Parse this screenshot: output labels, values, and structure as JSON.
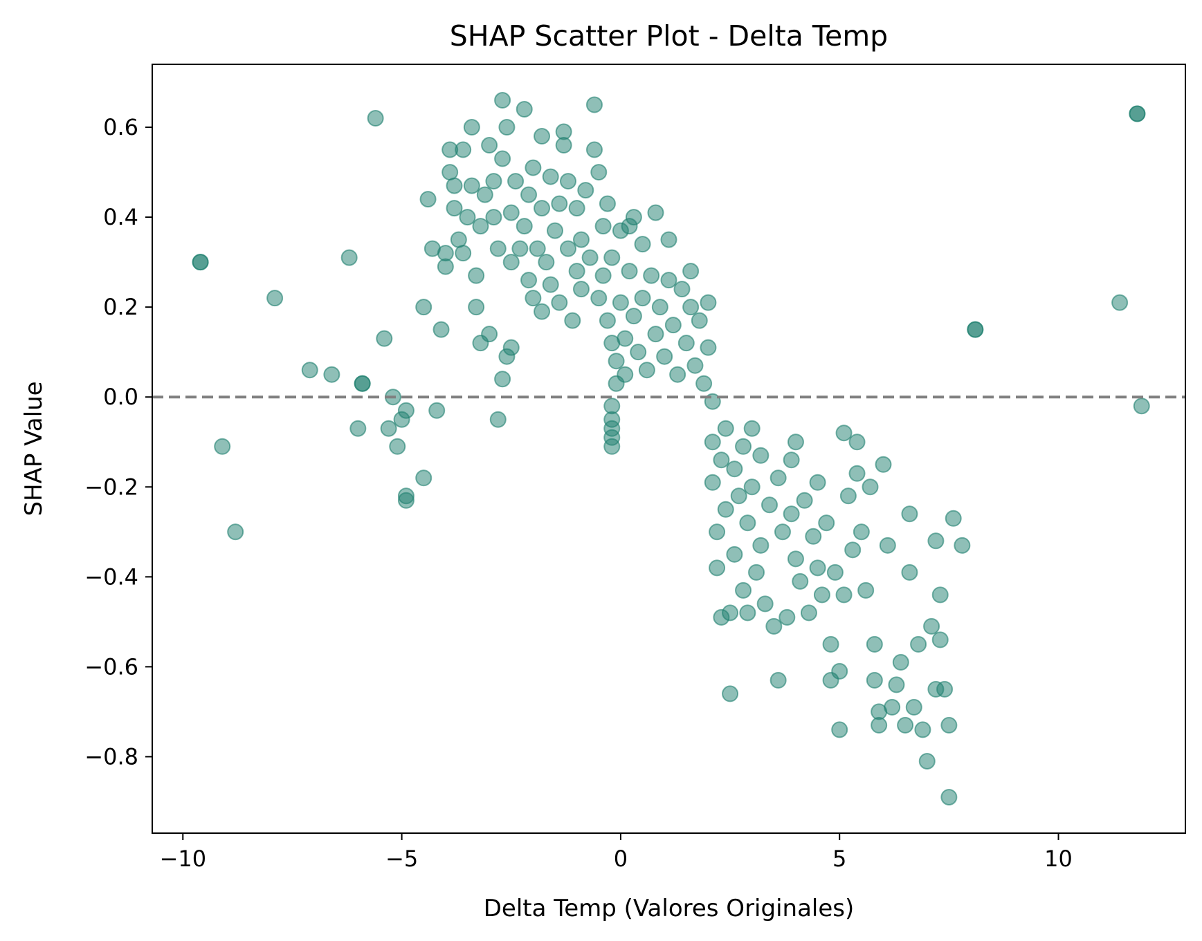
{
  "chart_data": {
    "type": "scatter",
    "title": "SHAP Scatter Plot - Delta Temp",
    "xlabel": "Delta Temp (Valores Originales)",
    "ylabel": "SHAP Value",
    "xlim": [
      -10.7,
      12.9
    ],
    "ylim": [
      -0.97,
      0.74
    ],
    "xticks": [
      -10,
      -5,
      0,
      5,
      10
    ],
    "xtick_labels": [
      "−10",
      "−5",
      "0",
      "5",
      "10"
    ],
    "yticks": [
      0.6,
      0.4,
      0.2,
      0.0,
      -0.2,
      -0.4,
      -0.6,
      -0.8
    ],
    "ytick_labels": [
      "0.6",
      "0.4",
      "0.2",
      "0.0",
      "−0.2",
      "−0.4",
      "−0.6",
      "−0.8"
    ],
    "reference_line": {
      "y": 0.0,
      "style": "dashed",
      "color": "#808080"
    },
    "grid": false,
    "marker_color": "#1f8070",
    "marker_alpha": 0.5,
    "points": [
      [
        -9.6,
        0.3
      ],
      [
        -9.6,
        0.3
      ],
      [
        -9.1,
        -0.11
      ],
      [
        -8.8,
        -0.3
      ],
      [
        -7.9,
        0.22
      ],
      [
        -7.1,
        0.06
      ],
      [
        -6.6,
        0.05
      ],
      [
        -6.2,
        0.31
      ],
      [
        -6.0,
        -0.07
      ],
      [
        -5.9,
        0.03
      ],
      [
        -5.9,
        0.03
      ],
      [
        -5.6,
        0.62
      ],
      [
        -5.4,
        0.13
      ],
      [
        -5.3,
        -0.07
      ],
      [
        -5.2,
        0.0
      ],
      [
        -5.1,
        -0.11
      ],
      [
        -5.0,
        -0.05
      ],
      [
        -4.9,
        -0.03
      ],
      [
        -4.9,
        -0.22
      ],
      [
        -4.9,
        -0.23
      ],
      [
        -4.5,
        -0.18
      ],
      [
        -4.5,
        0.2
      ],
      [
        -4.4,
        0.44
      ],
      [
        -4.3,
        0.33
      ],
      [
        -4.2,
        -0.03
      ],
      [
        -4.1,
        0.15
      ],
      [
        -4.0,
        0.29
      ],
      [
        -4.0,
        0.32
      ],
      [
        -3.9,
        0.55
      ],
      [
        -3.9,
        0.5
      ],
      [
        -3.8,
        0.42
      ],
      [
        -3.8,
        0.47
      ],
      [
        -3.7,
        0.35
      ],
      [
        -3.6,
        0.55
      ],
      [
        -3.6,
        0.32
      ],
      [
        -3.5,
        0.4
      ],
      [
        -3.4,
        0.47
      ],
      [
        -3.4,
        0.6
      ],
      [
        -3.3,
        0.27
      ],
      [
        -3.3,
        0.2
      ],
      [
        -3.2,
        0.12
      ],
      [
        -3.2,
        0.38
      ],
      [
        -3.1,
        0.45
      ],
      [
        -3.0,
        0.56
      ],
      [
        -3.0,
        0.14
      ],
      [
        -2.9,
        0.4
      ],
      [
        -2.9,
        0.48
      ],
      [
        -2.8,
        -0.05
      ],
      [
        -2.8,
        0.33
      ],
      [
        -2.7,
        0.04
      ],
      [
        -2.7,
        0.66
      ],
      [
        -2.7,
        0.53
      ],
      [
        -2.6,
        0.6
      ],
      [
        -2.6,
        0.09
      ],
      [
        -2.5,
        0.11
      ],
      [
        -2.5,
        0.3
      ],
      [
        -2.5,
        0.41
      ],
      [
        -2.4,
        0.48
      ],
      [
        -2.3,
        0.33
      ],
      [
        -2.2,
        0.38
      ],
      [
        -2.2,
        0.64
      ],
      [
        -2.1,
        0.26
      ],
      [
        -2.1,
        0.45
      ],
      [
        -2.0,
        0.51
      ],
      [
        -2.0,
        0.22
      ],
      [
        -1.9,
        0.33
      ],
      [
        -1.8,
        0.19
      ],
      [
        -1.8,
        0.42
      ],
      [
        -1.8,
        0.58
      ],
      [
        -1.7,
        0.3
      ],
      [
        -1.6,
        0.25
      ],
      [
        -1.6,
        0.49
      ],
      [
        -1.5,
        0.37
      ],
      [
        -1.4,
        0.43
      ],
      [
        -1.4,
        0.21
      ],
      [
        -1.3,
        0.56
      ],
      [
        -1.3,
        0.59
      ],
      [
        -1.2,
        0.33
      ],
      [
        -1.2,
        0.48
      ],
      [
        -1.1,
        0.17
      ],
      [
        -1.0,
        0.28
      ],
      [
        -1.0,
        0.42
      ],
      [
        -0.9,
        0.35
      ],
      [
        -0.9,
        0.24
      ],
      [
        -0.8,
        0.46
      ],
      [
        -0.7,
        0.31
      ],
      [
        -0.6,
        0.55
      ],
      [
        -0.6,
        0.65
      ],
      [
        -0.5,
        0.5
      ],
      [
        -0.5,
        0.22
      ],
      [
        -0.4,
        0.38
      ],
      [
        -0.4,
        0.27
      ],
      [
        -0.3,
        0.43
      ],
      [
        -0.3,
        0.17
      ],
      [
        -0.2,
        0.12
      ],
      [
        -0.2,
        0.31
      ],
      [
        -0.2,
        -0.02
      ],
      [
        -0.2,
        -0.05
      ],
      [
        -0.2,
        -0.07
      ],
      [
        -0.2,
        -0.09
      ],
      [
        -0.2,
        -0.11
      ],
      [
        -0.1,
        0.08
      ],
      [
        -0.1,
        0.03
      ],
      [
        0.0,
        0.37
      ],
      [
        0.0,
        0.21
      ],
      [
        0.1,
        0.05
      ],
      [
        0.1,
        0.13
      ],
      [
        0.2,
        0.28
      ],
      [
        0.2,
        0.38
      ],
      [
        0.3,
        0.4
      ],
      [
        0.3,
        0.18
      ],
      [
        0.4,
        0.1
      ],
      [
        0.5,
        0.34
      ],
      [
        0.5,
        0.22
      ],
      [
        0.6,
        0.06
      ],
      [
        0.7,
        0.27
      ],
      [
        0.8,
        0.41
      ],
      [
        0.8,
        0.14
      ],
      [
        0.9,
        0.2
      ],
      [
        1.0,
        0.09
      ],
      [
        1.1,
        0.26
      ],
      [
        1.1,
        0.35
      ],
      [
        1.2,
        0.16
      ],
      [
        1.3,
        0.05
      ],
      [
        1.4,
        0.24
      ],
      [
        1.5,
        0.12
      ],
      [
        1.6,
        0.28
      ],
      [
        1.6,
        0.2
      ],
      [
        1.7,
        0.07
      ],
      [
        1.8,
        0.17
      ],
      [
        1.9,
        0.03
      ],
      [
        2.0,
        0.21
      ],
      [
        2.0,
        0.11
      ],
      [
        2.1,
        -0.01
      ],
      [
        2.1,
        -0.1
      ],
      [
        2.1,
        -0.19
      ],
      [
        2.2,
        -0.3
      ],
      [
        2.2,
        -0.38
      ],
      [
        2.3,
        -0.49
      ],
      [
        2.3,
        -0.14
      ],
      [
        2.4,
        -0.25
      ],
      [
        2.4,
        -0.07
      ],
      [
        2.5,
        -0.48
      ],
      [
        2.5,
        -0.66
      ],
      [
        2.6,
        -0.35
      ],
      [
        2.6,
        -0.16
      ],
      [
        2.7,
        -0.22
      ],
      [
        2.8,
        -0.11
      ],
      [
        2.8,
        -0.43
      ],
      [
        2.9,
        -0.48
      ],
      [
        2.9,
        -0.28
      ],
      [
        3.0,
        -0.07
      ],
      [
        3.0,
        -0.2
      ],
      [
        3.1,
        -0.39
      ],
      [
        3.2,
        -0.33
      ],
      [
        3.2,
        -0.13
      ],
      [
        3.3,
        -0.46
      ],
      [
        3.4,
        -0.24
      ],
      [
        3.5,
        -0.51
      ],
      [
        3.6,
        -0.18
      ],
      [
        3.6,
        -0.63
      ],
      [
        3.7,
        -0.3
      ],
      [
        3.8,
        -0.49
      ],
      [
        3.9,
        -0.14
      ],
      [
        3.9,
        -0.26
      ],
      [
        4.0,
        -0.1
      ],
      [
        4.0,
        -0.36
      ],
      [
        4.1,
        -0.41
      ],
      [
        4.2,
        -0.23
      ],
      [
        4.3,
        -0.48
      ],
      [
        4.4,
        -0.31
      ],
      [
        4.5,
        -0.19
      ],
      [
        4.5,
        -0.38
      ],
      [
        4.6,
        -0.44
      ],
      [
        4.7,
        -0.28
      ],
      [
        4.8,
        -0.55
      ],
      [
        4.8,
        -0.63
      ],
      [
        4.9,
        -0.39
      ],
      [
        5.0,
        -0.61
      ],
      [
        5.0,
        -0.74
      ],
      [
        5.1,
        -0.44
      ],
      [
        5.1,
        -0.08
      ],
      [
        5.2,
        -0.22
      ],
      [
        5.3,
        -0.34
      ],
      [
        5.4,
        -0.1
      ],
      [
        5.4,
        -0.17
      ],
      [
        5.5,
        -0.3
      ],
      [
        5.6,
        -0.43
      ],
      [
        5.7,
        -0.2
      ],
      [
        5.8,
        -0.55
      ],
      [
        5.8,
        -0.63
      ],
      [
        5.9,
        -0.7
      ],
      [
        5.9,
        -0.73
      ],
      [
        6.0,
        -0.15
      ],
      [
        6.1,
        -0.33
      ],
      [
        6.2,
        -0.69
      ],
      [
        6.3,
        -0.64
      ],
      [
        6.4,
        -0.59
      ],
      [
        6.5,
        -0.73
      ],
      [
        6.6,
        -0.39
      ],
      [
        6.6,
        -0.26
      ],
      [
        6.7,
        -0.69
      ],
      [
        6.8,
        -0.55
      ],
      [
        6.9,
        -0.74
      ],
      [
        7.0,
        -0.81
      ],
      [
        7.1,
        -0.51
      ],
      [
        7.2,
        -0.65
      ],
      [
        7.2,
        -0.32
      ],
      [
        7.3,
        -0.44
      ],
      [
        7.3,
        -0.54
      ],
      [
        7.4,
        -0.65
      ],
      [
        7.5,
        -0.89
      ],
      [
        7.5,
        -0.73
      ],
      [
        7.6,
        -0.27
      ],
      [
        7.8,
        -0.33
      ],
      [
        8.1,
        0.15
      ],
      [
        8.1,
        0.15
      ],
      [
        11.4,
        0.21
      ],
      [
        11.8,
        0.63
      ],
      [
        11.8,
        0.63
      ],
      [
        11.9,
        -0.02
      ]
    ]
  }
}
